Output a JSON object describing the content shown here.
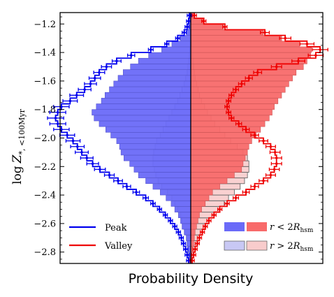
{
  "chart_data": {
    "type": "bar",
    "orientation": "horizontal-mirrored",
    "xlabel": "Probability Density",
    "ylabel": "log Z*,<100Myr",
    "ylim": [
      -2.88,
      -1.12
    ],
    "yticks": [
      -1.2,
      -1.4,
      -1.6,
      -1.8,
      -2.0,
      -2.2,
      -2.4,
      -2.6,
      -2.8
    ],
    "bin_width": 0.04,
    "bin_centers": [
      -2.86,
      -2.82,
      -2.78,
      -2.74,
      -2.7,
      -2.66,
      -2.62,
      -2.58,
      -2.54,
      -2.5,
      -2.46,
      -2.42,
      -2.38,
      -2.34,
      -2.3,
      -2.26,
      -2.22,
      -2.18,
      -2.14,
      -2.1,
      -2.06,
      -2.02,
      -1.98,
      -1.94,
      -1.9,
      -1.86,
      -1.82,
      -1.78,
      -1.74,
      -1.7,
      -1.66,
      -1.62,
      -1.58,
      -1.54,
      -1.5,
      -1.46,
      -1.42,
      -1.38,
      -1.34,
      -1.3,
      -1.26,
      -1.22,
      -1.18,
      -1.14
    ],
    "colors": {
      "peak": "#0000ee",
      "valley": "#ee0000",
      "peak_inner_fill": "#6a6af8",
      "valley_inner_fill": "#f86a6a",
      "peak_outer_fill": "#c8c8f4",
      "valley_outer_fill": "#f8cccc"
    },
    "series": [
      {
        "name": "Peak",
        "region": "inner",
        "side": "left",
        "values": [
          0.02,
          0.03,
          0.04,
          0.05,
          0.06,
          0.09,
          0.12,
          0.14,
          0.17,
          0.22,
          0.27,
          0.34,
          0.42,
          0.52,
          0.62,
          0.72,
          0.78,
          0.84,
          0.92,
          0.96,
          0.98,
          1.02,
          1.1,
          1.17,
          1.26,
          1.33,
          1.36,
          1.3,
          1.23,
          1.18,
          1.12,
          1.06,
          1.0,
          0.93,
          0.83,
          0.72,
          0.58,
          0.4,
          0.26,
          0.14,
          0.06,
          0.03,
          0.02,
          0.01
        ]
      },
      {
        "name": "Valley",
        "region": "inner",
        "side": "right",
        "values": [
          0.01,
          0.02,
          0.03,
          0.04,
          0.05,
          0.06,
          0.08,
          0.1,
          0.12,
          0.15,
          0.2,
          0.25,
          0.3,
          0.4,
          0.5,
          0.6,
          0.7,
          0.72,
          0.75,
          0.78,
          0.8,
          0.84,
          0.9,
          0.96,
          1.02,
          1.08,
          1.12,
          1.15,
          1.2,
          1.25,
          1.3,
          1.35,
          1.4,
          1.45,
          1.55,
          1.6,
          1.65,
          1.66,
          1.5,
          1.25,
          1.0,
          0.45,
          0.18,
          0.05
        ]
      },
      {
        "name": "Peak",
        "region": "outer",
        "side": "left",
        "values": [
          0.02,
          0.03,
          0.04,
          0.05,
          0.06,
          0.08,
          0.1,
          0.12,
          0.14,
          0.18,
          0.22,
          0.26,
          0.32,
          0.4,
          0.45,
          0.48,
          0.5,
          0.52,
          0.52,
          0.51,
          0.49,
          0.47,
          0.42,
          0.38,
          0.34,
          0.3,
          0.26,
          0.22,
          0.18,
          0.15,
          0.12,
          0.09,
          0.07,
          0.05,
          0.04,
          0.03,
          0.02,
          0.015,
          0.01,
          0.01,
          0.01,
          0.005,
          0.005,
          0.005
        ]
      },
      {
        "name": "Valley",
        "region": "outer",
        "side": "right",
        "values": [
          0.02,
          0.04,
          0.06,
          0.09,
          0.12,
          0.16,
          0.2,
          0.25,
          0.32,
          0.4,
          0.46,
          0.52,
          0.6,
          0.68,
          0.74,
          0.78,
          0.8,
          0.8,
          0.78,
          0.72,
          0.64,
          0.55,
          0.47,
          0.4,
          0.33,
          0.28,
          0.23,
          0.19,
          0.15,
          0.12,
          0.1,
          0.08,
          0.06,
          0.05,
          0.04,
          0.03,
          0.025,
          0.02,
          0.015,
          0.01,
          0.008,
          0.005,
          0.005,
          0.005
        ]
      }
    ],
    "step_lines": [
      {
        "name": "Peak",
        "side": "left",
        "values": [
          0.03,
          0.05,
          0.07,
          0.1,
          0.13,
          0.17,
          0.22,
          0.28,
          0.35,
          0.43,
          0.52,
          0.62,
          0.75,
          0.88,
          1.0,
          1.12,
          1.25,
          1.35,
          1.43,
          1.5,
          1.56,
          1.62,
          1.7,
          1.78,
          1.83,
          1.86,
          1.83,
          1.78,
          1.66,
          1.57,
          1.46,
          1.38,
          1.32,
          1.26,
          1.16,
          1.02,
          0.82,
          0.55,
          0.33,
          0.18,
          0.09,
          0.05,
          0.03,
          0.02
        ]
      },
      {
        "name": "Valley",
        "side": "right",
        "values": [
          0.02,
          0.04,
          0.06,
          0.09,
          0.12,
          0.16,
          0.2,
          0.25,
          0.32,
          0.4,
          0.5,
          0.62,
          0.76,
          0.88,
          1.0,
          1.1,
          1.15,
          1.18,
          1.18,
          1.16,
          1.1,
          1.0,
          0.88,
          0.76,
          0.66,
          0.56,
          0.52,
          0.5,
          0.52,
          0.56,
          0.62,
          0.7,
          0.8,
          0.92,
          1.18,
          1.48,
          1.72,
          1.78,
          1.6,
          1.3,
          1.02,
          0.47,
          0.18,
          0.05
        ]
      }
    ],
    "legend": {
      "placement": "bottom",
      "lines": [
        {
          "label": "Peak",
          "color": "#0000ee"
        },
        {
          "label": "Valley",
          "color": "#ee0000"
        }
      ],
      "patches": [
        {
          "label": "r < 2R_hsm"
        },
        {
          "label": "r > 2R_hsm"
        }
      ]
    }
  }
}
